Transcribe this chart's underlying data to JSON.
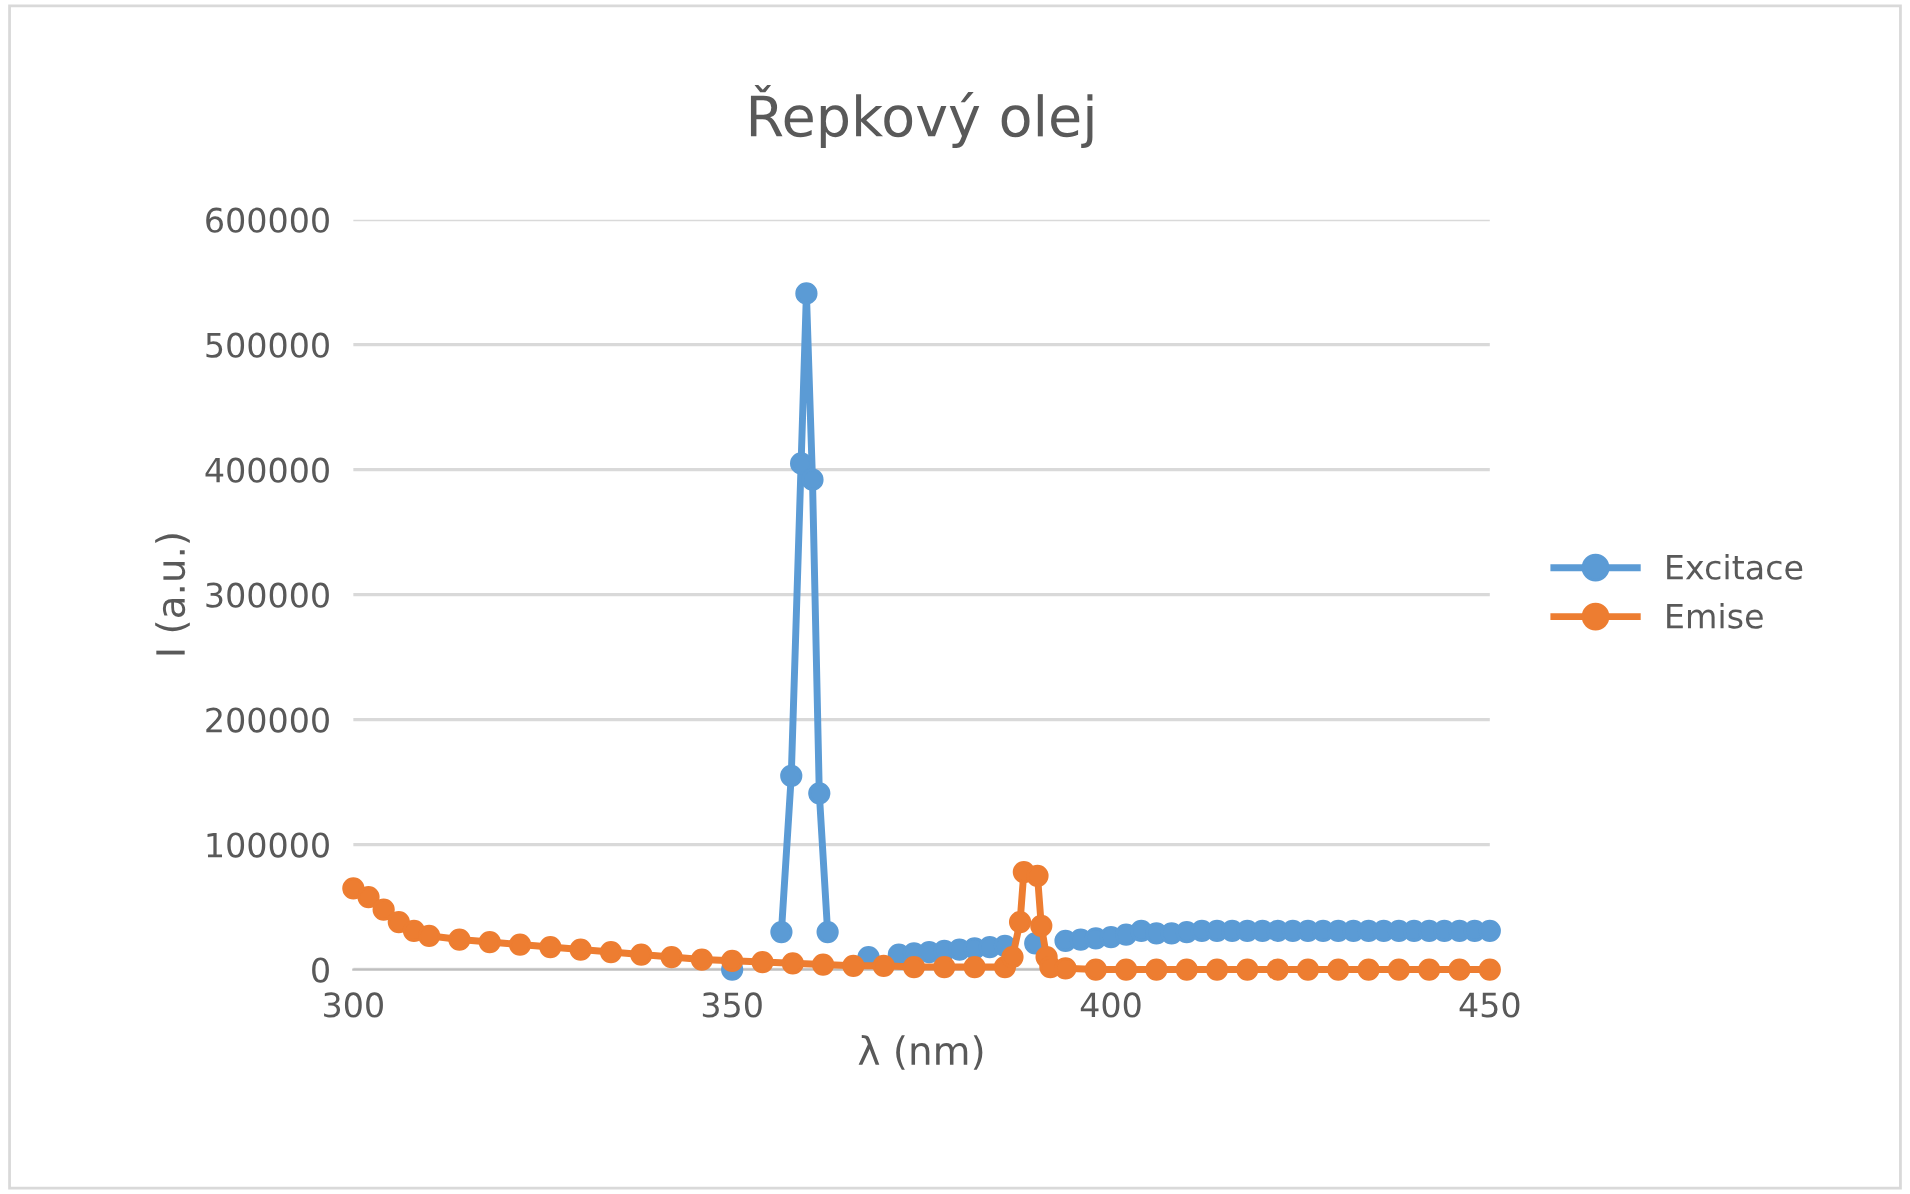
{
  "chart_data": {
    "type": "line",
    "title": "Řepkový olej",
    "xlabel": "λ (nm)",
    "ylabel": "I (a.u.)",
    "xlim": [
      300,
      450
    ],
    "xticks": [
      300,
      350,
      400,
      450
    ],
    "ylim": [
      0,
      600000
    ],
    "yticks": [
      0,
      100000,
      200000,
      300000,
      400000,
      500000,
      600000
    ],
    "grid": "y",
    "legend": "right",
    "marker": "circle",
    "line_style": "solid",
    "series": [
      {
        "name": "Excitace",
        "color": "#5b9bd5",
        "x": [
          350,
          352,
          354,
          356,
          356.5,
          357.8,
          359.1,
          359.8,
          360.6,
          361.5,
          362.6,
          364,
          366,
          368,
          370,
          372,
          374,
          376,
          378,
          380,
          382,
          384,
          386,
          388,
          390,
          392,
          394,
          396,
          398,
          400,
          402,
          404,
          406,
          408,
          410,
          412,
          414,
          416,
          418,
          420,
          422,
          424,
          426,
          428,
          430,
          432,
          434,
          436,
          438,
          440,
          442,
          444,
          446,
          448,
          450
        ],
        "values": [
          0,
          null,
          null,
          null,
          30000,
          155000,
          405000,
          541000,
          392000,
          141000,
          30000,
          null,
          null,
          10000,
          null,
          12000,
          13000,
          14000,
          15000,
          16000,
          17000,
          18000,
          19000,
          null,
          21000,
          null,
          23000,
          24000,
          25000,
          26000,
          28000,
          31000,
          29000,
          29000,
          30000,
          31000,
          31000,
          31000,
          31000,
          31000,
          31000,
          31000,
          31000,
          31000,
          31000,
          31000,
          31000,
          31000,
          31000,
          31000,
          31000,
          31000,
          31000,
          31000,
          31000
        ]
      },
      {
        "name": "Emise",
        "color": "#ed7d31",
        "x": [
          300,
          302,
          304,
          306,
          308,
          310,
          314,
          318,
          322,
          326,
          330,
          334,
          338,
          342,
          346,
          350,
          354,
          358,
          362,
          366,
          370,
          374,
          378,
          382,
          386,
          387,
          388,
          388.5,
          390.3,
          390.8,
          391.5,
          392,
          394,
          398,
          402,
          406,
          410,
          414,
          418,
          422,
          426,
          430,
          434,
          438,
          442,
          446,
          450
        ],
        "values": [
          65000,
          58000,
          48000,
          38000,
          31000,
          27000,
          24000,
          22000,
          20000,
          18000,
          16000,
          14000,
          12000,
          10000,
          8000,
          7000,
          6000,
          5000,
          4000,
          3000,
          3000,
          2000,
          2000,
          2000,
          2000,
          10000,
          38000,
          78000,
          75000,
          35000,
          10000,
          2000,
          1000,
          0,
          0,
          0,
          0,
          0,
          0,
          0,
          0,
          0,
          0,
          0,
          0,
          0,
          0
        ]
      }
    ]
  }
}
